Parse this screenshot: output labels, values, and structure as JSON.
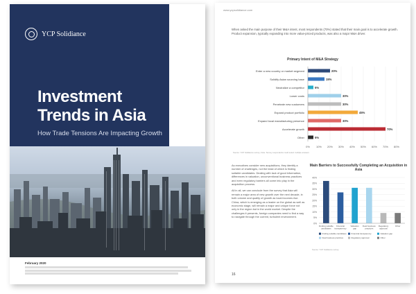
{
  "cover": {
    "brand": "YCP Solidiance",
    "title_line1": "Investment",
    "title_line2": "Trends in Asia",
    "subtitle": "How Trade Tensions Are Impacting Growth",
    "date": "February 2020"
  },
  "page": {
    "site": "www.ycpsolidiance.com",
    "intro": "When asked the main purpose of their M&A intent, most respondents (70%) stated that their main goal is to accelerate growth. Product expansion, typically expanding into more value-priced products, was also a major M&A driver.",
    "source": "Source: YCP Solidiance survey; Note: Survey respondents could select multiple answers",
    "paragraph1": "As executives consider new acquisitions, they identify a number of challenges, not the least of which is finding suitable candidates. Dealing with lack of good information, differences in valuation, unconventional business practices and even regulatory barriers all come into play in the acquisition process.",
    "paragraph2": "All in all, we can conclude from the survey that Asia will remain a major area of new growth over the next decade, in both volume and quality of growth as local incomes rise. China, which is emerging as a leader on the global as well as economic stage, will remain a major and unique force not only in the region but in the world market. Despite the challenges it presents, foreign companies need to find a way to navigate through the current, turbulent environment.",
    "chart2_note": "Source: YCP Solidiance survey",
    "page_number": "16"
  },
  "chart_data": [
    {
      "type": "bar",
      "orientation": "horizontal",
      "title": "Primary Intent of M&A Strategy",
      "categories": [
        "Enter a new country or market segment",
        "Solidify Asian sourcing base",
        "Neutralize a competitor",
        "Lower costs",
        "Penetrate new customers",
        "Expand product portfolio",
        "Expand local manufacturing presence",
        "Accelerate growth",
        "Other"
      ],
      "values": [
        20,
        15,
        5,
        30,
        30,
        45,
        30,
        70,
        5
      ],
      "value_labels": [
        "20%",
        "15%",
        "5%",
        "30%",
        "30%",
        "45%",
        "30%",
        "70%",
        "5%"
      ],
      "colors": [
        "#2e4a7a",
        "#3a78c2",
        "#27aeca",
        "#9fd0ea",
        "#bdbdbd",
        "#f2a93b",
        "#e06a67",
        "#bb2b33",
        "#2a2a2a"
      ],
      "x_ticks": [
        "0%",
        "10%",
        "20%",
        "30%",
        "40%",
        "50%",
        "60%",
        "70%",
        "80%"
      ],
      "xlim": [
        0,
        80
      ]
    },
    {
      "type": "bar",
      "title": "Main Barriers to Successfully Completing an Acquisition in Asia",
      "categories": [
        "Finding suitable candidates",
        "Financial transparency",
        "Valuation gap",
        "Deal business practices",
        "Regulatory approval",
        "Other"
      ],
      "values": [
        37,
        27,
        31,
        31,
        9,
        9
      ],
      "colors": [
        "#2c4c7c",
        "#2c5ea0",
        "#21a3cf",
        "#a9d6ee",
        "#b9b9b9",
        "#7a7a7a"
      ],
      "y_ticks": [
        "0%",
        "5%",
        "10%",
        "15%",
        "20%",
        "25%",
        "30%",
        "35%",
        "40%"
      ],
      "ylim": [
        0,
        40
      ]
    }
  ]
}
